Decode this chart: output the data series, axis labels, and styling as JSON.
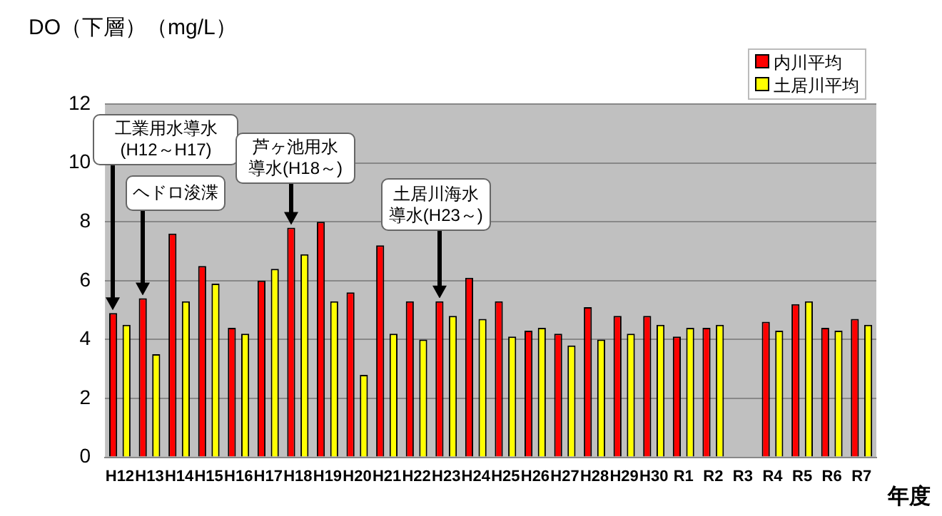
{
  "chart_data": {
    "type": "bar",
    "ylabel": "DO（下層）（mg/L）",
    "xlabel": "年度",
    "categories": [
      "H12",
      "H13",
      "H14",
      "H15",
      "H16",
      "H17",
      "H18",
      "H19",
      "H20",
      "H21",
      "H22",
      "H23",
      "H24",
      "H25",
      "H26",
      "H27",
      "H28",
      "H29",
      "H30",
      "R1",
      "R2",
      "R3",
      "R4",
      "R5",
      "R6",
      "R7"
    ],
    "series": [
      {
        "name": "内川平均",
        "color": "#ff0000",
        "values": [
          4.9,
          5.4,
          7.6,
          6.5,
          4.4,
          6.0,
          7.8,
          8.0,
          5.6,
          7.2,
          5.3,
          5.3,
          6.1,
          5.3,
          4.3,
          4.2,
          5.1,
          4.8,
          4.8,
          4.1,
          4.4,
          null,
          4.6,
          5.2,
          4.4,
          4.7
        ]
      },
      {
        "name": "土居川平均",
        "color": "#ffff00",
        "values": [
          4.5,
          3.5,
          5.3,
          5.9,
          4.2,
          6.4,
          6.9,
          5.3,
          2.8,
          4.2,
          4.0,
          4.8,
          4.7,
          4.1,
          4.4,
          3.8,
          4.0,
          4.2,
          4.5,
          4.4,
          4.5,
          null,
          4.3,
          5.3,
          4.3,
          4.5
        ]
      }
    ],
    "ylim": [
      0,
      12
    ],
    "yticks": [
      0,
      2,
      4,
      6,
      8,
      10,
      12
    ],
    "grid": "y",
    "legend": "top right",
    "annotations": [
      "工業用水導水(H12～H17)",
      "ヘドロ浚渫",
      "芦ヶ池用水導水(H18～)",
      "土居川海水導水(H23～)"
    ]
  }
}
